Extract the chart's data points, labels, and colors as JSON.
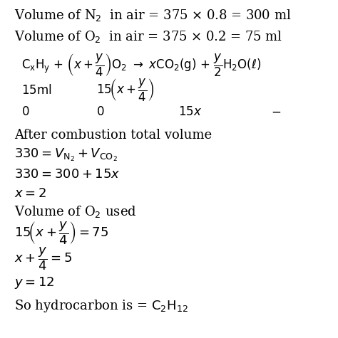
{
  "bg_color": "#ffffff",
  "text_color": "#000000",
  "figsize": [
    4.74,
    4.75
  ],
  "dpi": 100
}
